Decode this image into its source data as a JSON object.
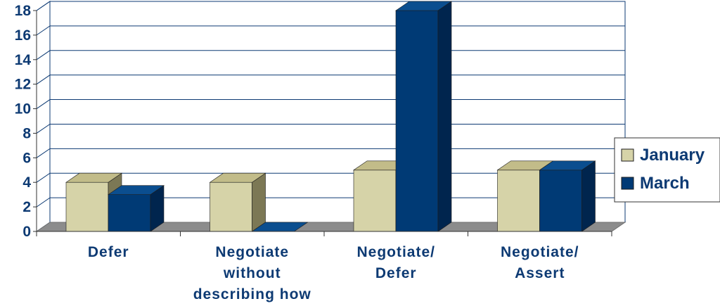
{
  "chart_data": {
    "type": "bar",
    "title": "",
    "xlabel": "",
    "ylabel": "",
    "categories": [
      [
        "Defer"
      ],
      [
        "Negotiate",
        "without",
        "describing how"
      ],
      [
        "Negotiate/",
        "Defer"
      ],
      [
        "Negotiate/",
        "Assert"
      ]
    ],
    "series": [
      {
        "name": "January",
        "values": [
          4,
          4,
          5,
          5
        ]
      },
      {
        "name": "March",
        "values": [
          3,
          0,
          18,
          5
        ]
      }
    ],
    "ylim": [
      0,
      18
    ],
    "yticks": [
      0,
      2,
      4,
      6,
      8,
      10,
      12,
      14,
      16,
      18
    ],
    "grid": true,
    "legend_position": "right",
    "three_d": true
  },
  "colors": {
    "january_front": "#d6d3a8",
    "january_top": "#c2bc89",
    "january_side": "#7c7855",
    "march_front": "#003a75",
    "march_top": "#0b4e8f",
    "march_side": "#00254e",
    "floor": "#8c8c8c",
    "grid": "#0d3a73",
    "text": "#0d3a73"
  }
}
